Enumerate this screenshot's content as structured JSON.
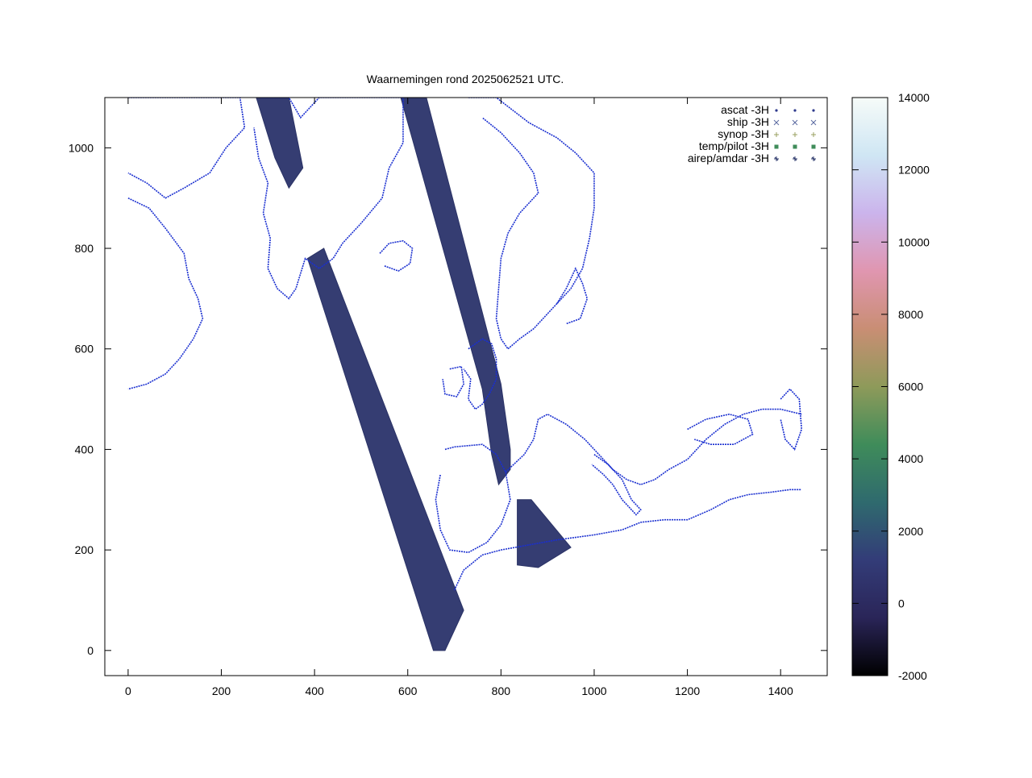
{
  "chart_data": {
    "type": "scatter",
    "title": "Waarnemingen rond 2025062521 UTC.",
    "xlim": [
      -50,
      1500
    ],
    "ylim": [
      -50,
      1100
    ],
    "x_ticks": [
      {
        "value": 0,
        "label": "0"
      },
      {
        "value": 200,
        "label": "200"
      },
      {
        "value": 400,
        "label": "400"
      },
      {
        "value": 600,
        "label": "600"
      },
      {
        "value": 800,
        "label": "800"
      },
      {
        "value": 1000,
        "label": "1000"
      },
      {
        "value": 1200,
        "label": "1200"
      },
      {
        "value": 1400,
        "label": "1400"
      }
    ],
    "y_ticks": [
      {
        "value": 0,
        "label": "0"
      },
      {
        "value": 200,
        "label": "200"
      },
      {
        "value": 400,
        "label": "400"
      },
      {
        "value": 600,
        "label": "600"
      },
      {
        "value": 800,
        "label": "800"
      },
      {
        "value": 1000,
        "label": "1000"
      }
    ],
    "legend_position": "top-right",
    "legend": [
      {
        "label": "ascat -3H",
        "marker": "dot",
        "color": "#2e3a8c"
      },
      {
        "label": "ship -3H",
        "marker": "cross",
        "color": "#5a6aa0"
      },
      {
        "label": "synop -3H",
        "marker": "plus",
        "color": "#9aa060"
      },
      {
        "label": "temp/pilot -3H",
        "marker": "square",
        "color": "#3f8c5a"
      },
      {
        "label": "airep/amdar -3H",
        "marker": "star",
        "color": "#2e3a6c"
      }
    ],
    "colorbar": {
      "min": -2000,
      "max": 14000,
      "ticks": [
        {
          "value": -2000,
          "label": "-2000"
        },
        {
          "value": 0,
          "label": "0"
        },
        {
          "value": 2000,
          "label": "2000"
        },
        {
          "value": 4000,
          "label": "4000"
        },
        {
          "value": 6000,
          "label": "6000"
        },
        {
          "value": 8000,
          "label": "8000"
        },
        {
          "value": 10000,
          "label": "10000"
        },
        {
          "value": 12000,
          "label": "12000"
        },
        {
          "value": 14000,
          "label": "14000"
        }
      ],
      "colors": [
        "#000000",
        "#2a2558",
        "#333c78",
        "#2f6a6e",
        "#3f8c5a",
        "#8e9a5a",
        "#c98e74",
        "#e096b0",
        "#cbb4ec",
        "#cfe6f4",
        "#f6fbf8"
      ]
    },
    "swaths": [
      {
        "name": "ascat-swath-1",
        "polygon": [
          [
            275,
            1100
          ],
          [
            345,
            1100
          ],
          [
            375,
            960
          ],
          [
            345,
            920
          ],
          [
            315,
            980
          ]
        ],
        "value": 0
      },
      {
        "name": "ascat-swath-2",
        "polygon": [
          [
            385,
            780
          ],
          [
            420,
            800
          ],
          [
            720,
            80
          ],
          [
            680,
            0
          ],
          [
            655,
            0
          ]
        ],
        "value": 0
      },
      {
        "name": "ascat-swath-3",
        "polygon": [
          [
            585,
            1100
          ],
          [
            640,
            1100
          ],
          [
            800,
            530
          ],
          [
            820,
            400
          ],
          [
            820,
            360
          ],
          [
            795,
            330
          ],
          [
            780,
            390
          ],
          [
            760,
            520
          ]
        ],
        "value": 0
      },
      {
        "name": "ascat-swath-4",
        "polygon": [
          [
            835,
            300
          ],
          [
            865,
            300
          ],
          [
            950,
            205
          ],
          [
            880,
            165
          ],
          [
            835,
            170
          ],
          [
            835,
            240
          ]
        ],
        "value": 0
      }
    ],
    "coastlines": [
      {
        "name": "greenland",
        "points": [
          [
            285,
            1100
          ],
          [
            345,
            1100
          ],
          [
            370,
            1060
          ],
          [
            410,
            1100
          ],
          [
            590,
            1100
          ],
          [
            590,
            1010
          ],
          [
            560,
            960
          ],
          [
            545,
            900
          ],
          [
            500,
            850
          ],
          [
            460,
            810
          ],
          [
            440,
            780
          ],
          [
            410,
            760
          ],
          [
            380,
            780
          ],
          [
            360,
            720
          ],
          [
            345,
            700
          ],
          [
            320,
            720
          ],
          [
            300,
            760
          ],
          [
            305,
            820
          ],
          [
            290,
            870
          ],
          [
            300,
            930
          ],
          [
            280,
            980
          ],
          [
            270,
            1040
          ]
        ]
      },
      {
        "name": "canada-arctic",
        "points": [
          [
            0,
            1100
          ],
          [
            240,
            1100
          ],
          [
            250,
            1040
          ],
          [
            210,
            1000
          ],
          [
            175,
            950
          ],
          [
            120,
            920
          ],
          [
            80,
            900
          ],
          [
            40,
            930
          ],
          [
            0,
            950
          ]
        ]
      },
      {
        "name": "labrador-coast",
        "points": [
          [
            0,
            900
          ],
          [
            45,
            880
          ],
          [
            80,
            840
          ],
          [
            120,
            790
          ],
          [
            130,
            740
          ],
          [
            150,
            700
          ],
          [
            160,
            660
          ],
          [
            140,
            620
          ],
          [
            110,
            580
          ],
          [
            80,
            550
          ],
          [
            40,
            530
          ],
          [
            0,
            520
          ]
        ]
      },
      {
        "name": "iceland",
        "points": [
          [
            540,
            790
          ],
          [
            560,
            810
          ],
          [
            590,
            815
          ],
          [
            610,
            800
          ],
          [
            605,
            770
          ],
          [
            580,
            755
          ],
          [
            550,
            765
          ]
        ]
      },
      {
        "name": "scandinavia",
        "points": [
          [
            730,
            1100
          ],
          [
            790,
            1100
          ],
          [
            860,
            1050
          ],
          [
            920,
            1020
          ],
          [
            960,
            990
          ],
          [
            1000,
            950
          ],
          [
            1000,
            880
          ],
          [
            990,
            820
          ],
          [
            975,
            760
          ],
          [
            950,
            720
          ],
          [
            920,
            690
          ],
          [
            900,
            670
          ],
          [
            870,
            640
          ],
          [
            840,
            620
          ],
          [
            815,
            600
          ],
          [
            800,
            620
          ],
          [
            790,
            660
          ],
          [
            795,
            720
          ],
          [
            800,
            780
          ],
          [
            815,
            830
          ],
          [
            840,
            870
          ],
          [
            880,
            910
          ],
          [
            870,
            950
          ],
          [
            840,
            990
          ],
          [
            800,
            1030
          ],
          [
            760,
            1060
          ]
        ]
      },
      {
        "name": "baltic-sea",
        "points": [
          [
            920,
            690
          ],
          [
            940,
            720
          ],
          [
            960,
            760
          ],
          [
            975,
            730
          ],
          [
            985,
            700
          ],
          [
            970,
            660
          ],
          [
            940,
            650
          ]
        ]
      },
      {
        "name": "uk-ireland",
        "points": [
          [
            730,
            600
          ],
          [
            760,
            620
          ],
          [
            780,
            610
          ],
          [
            790,
            580
          ],
          [
            790,
            540
          ],
          [
            775,
            510
          ],
          [
            760,
            490
          ],
          [
            745,
            480
          ],
          [
            730,
            500
          ],
          [
            735,
            540
          ],
          [
            720,
            560
          ]
        ]
      },
      {
        "name": "ireland",
        "points": [
          [
            690,
            560
          ],
          [
            715,
            565
          ],
          [
            720,
            530
          ],
          [
            705,
            505
          ],
          [
            680,
            510
          ],
          [
            675,
            540
          ]
        ]
      },
      {
        "name": "iberia",
        "points": [
          [
            680,
            400
          ],
          [
            700,
            405
          ],
          [
            760,
            410
          ],
          [
            790,
            390
          ],
          [
            810,
            355
          ],
          [
            820,
            300
          ],
          [
            800,
            250
          ],
          [
            770,
            215
          ],
          [
            730,
            195
          ],
          [
            690,
            200
          ],
          [
            670,
            240
          ],
          [
            660,
            300
          ],
          [
            670,
            350
          ]
        ]
      },
      {
        "name": "north-africa",
        "points": [
          [
            700,
            120
          ],
          [
            720,
            160
          ],
          [
            760,
            190
          ],
          [
            800,
            200
          ],
          [
            860,
            210
          ],
          [
            920,
            220
          ],
          [
            960,
            225
          ],
          [
            1000,
            230
          ],
          [
            1060,
            240
          ],
          [
            1100,
            255
          ],
          [
            1150,
            260
          ],
          [
            1200,
            260
          ],
          [
            1250,
            280
          ],
          [
            1290,
            300
          ],
          [
            1330,
            310
          ],
          [
            1380,
            315
          ],
          [
            1420,
            320
          ],
          [
            1445,
            320
          ]
        ]
      },
      {
        "name": "europe-mainland",
        "points": [
          [
            810,
            355
          ],
          [
            850,
            390
          ],
          [
            870,
            420
          ],
          [
            880,
            460
          ],
          [
            900,
            470
          ],
          [
            940,
            450
          ],
          [
            980,
            420
          ],
          [
            1010,
            390
          ],
          [
            1040,
            360
          ],
          [
            1070,
            340
          ],
          [
            1100,
            330
          ],
          [
            1130,
            340
          ],
          [
            1160,
            360
          ],
          [
            1200,
            380
          ],
          [
            1240,
            420
          ],
          [
            1280,
            450
          ],
          [
            1320,
            470
          ],
          [
            1360,
            480
          ],
          [
            1400,
            480
          ],
          [
            1445,
            470
          ]
        ]
      },
      {
        "name": "italy",
        "points": [
          [
            1000,
            390
          ],
          [
            1030,
            370
          ],
          [
            1060,
            340
          ],
          [
            1080,
            300
          ],
          [
            1100,
            280
          ],
          [
            1090,
            270
          ],
          [
            1060,
            300
          ],
          [
            1040,
            330
          ],
          [
            1020,
            350
          ],
          [
            995,
            370
          ]
        ]
      },
      {
        "name": "black-sea",
        "points": [
          [
            1200,
            440
          ],
          [
            1240,
            460
          ],
          [
            1290,
            470
          ],
          [
            1330,
            460
          ],
          [
            1340,
            430
          ],
          [
            1300,
            410
          ],
          [
            1250,
            410
          ],
          [
            1215,
            420
          ]
        ]
      },
      {
        "name": "caspian",
        "points": [
          [
            1400,
            500
          ],
          [
            1420,
            520
          ],
          [
            1440,
            500
          ],
          [
            1445,
            440
          ],
          [
            1430,
            400
          ],
          [
            1410,
            420
          ],
          [
            1400,
            460
          ]
        ]
      }
    ]
  }
}
